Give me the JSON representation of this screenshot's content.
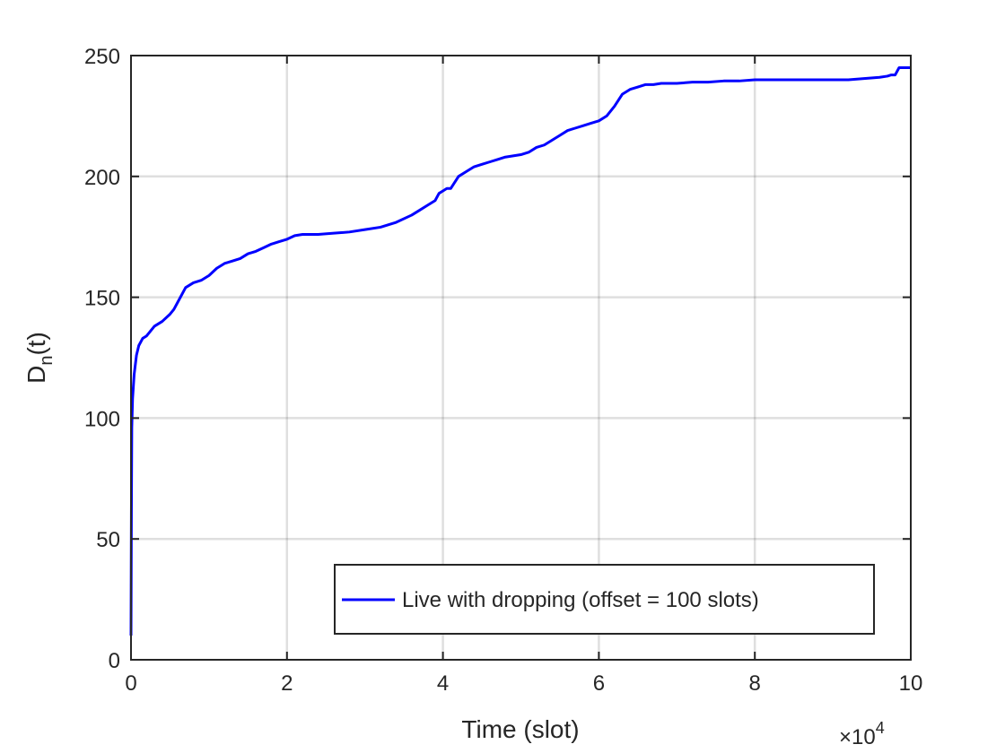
{
  "chart_data": {
    "type": "line",
    "xlabel": "Time (slot)",
    "ylabel_main": "D",
    "ylabel_sub": "n",
    "ylabel_suffix": "(t)",
    "x_exponent_base": "×10",
    "x_exponent_power": "4",
    "xlim": [
      0,
      100000
    ],
    "ylim": [
      0,
      250
    ],
    "x_tick_values": [
      0,
      20000,
      40000,
      60000,
      80000,
      100000
    ],
    "x_tick_labels": [
      "0",
      "2",
      "4",
      "6",
      "8",
      "10"
    ],
    "y_ticks": [
      0,
      50,
      100,
      150,
      200,
      250
    ],
    "y_tick_labels": [
      "0",
      "50",
      "100",
      "150",
      "200",
      "250"
    ],
    "grid": true,
    "legend_position": "bottom-right",
    "series": [
      {
        "name": "Live with dropping (offset = 100 slots)",
        "color": "#0000ff",
        "x": [
          0,
          50,
          100,
          200,
          400,
          700,
          1000,
          1500,
          2000,
          3000,
          4000,
          5000,
          5500,
          6000,
          7000,
          8000,
          9000,
          10000,
          11000,
          12000,
          13000,
          14000,
          15000,
          16000,
          17000,
          18000,
          19000,
          20000,
          21000,
          22000,
          24000,
          26000,
          28000,
          30000,
          32000,
          34000,
          36000,
          37000,
          38000,
          39000,
          39500,
          40000,
          40500,
          41000,
          42000,
          43000,
          44000,
          45000,
          46000,
          47000,
          48000,
          49000,
          50000,
          51000,
          52000,
          53000,
          54000,
          55000,
          56000,
          57000,
          58000,
          59000,
          60000,
          61000,
          62000,
          63000,
          64000,
          65000,
          66000,
          67000,
          68000,
          70000,
          72000,
          74000,
          76000,
          78000,
          80000,
          82000,
          84000,
          86000,
          88000,
          90000,
          92000,
          94000,
          96000,
          97000,
          97500,
          98000,
          98500,
          99000,
          100000
        ],
        "y": [
          10,
          60,
          96,
          108,
          118,
          126,
          130,
          133,
          134,
          138,
          140,
          143,
          145,
          148,
          154,
          156,
          157,
          159,
          162,
          164,
          165,
          166,
          168,
          169,
          170.5,
          172,
          173,
          174,
          175.5,
          176,
          176,
          176.5,
          177,
          178,
          179,
          181,
          184,
          186,
          188,
          190,
          193,
          194,
          195,
          195,
          200,
          202,
          204,
          205,
          206,
          207,
          208,
          208.5,
          209,
          210,
          212,
          213,
          215,
          217,
          219,
          220,
          221,
          222,
          223,
          225,
          229,
          234,
          236,
          237,
          238,
          238,
          238.5,
          238.5,
          239,
          239,
          239.5,
          239.5,
          240,
          240,
          240,
          240,
          240,
          240,
          240,
          240.5,
          241,
          241.5,
          242,
          242,
          245,
          245,
          245
        ]
      }
    ]
  }
}
